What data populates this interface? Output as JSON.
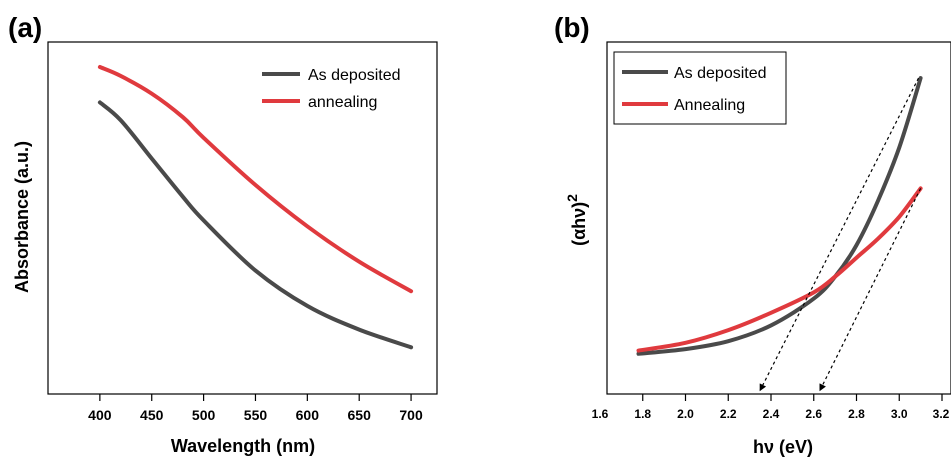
{
  "colors": {
    "as_deposited": "#4a4a4a",
    "annealing": "#e03a3e",
    "extrapolation": "#000000"
  },
  "chart_data": [
    {
      "type": "line",
      "panel_label": "(a)",
      "title": "",
      "xlabel": "Wavelength (nm)",
      "ylabel": "Absorbance (a.u.)",
      "xlim": [
        350,
        725
      ],
      "ylim": [
        0,
        1
      ],
      "x_ticks": [
        400,
        450,
        500,
        550,
        600,
        650,
        700
      ],
      "y_ticks_labeled": false,
      "legend_position": "top-right",
      "grid": false,
      "series": [
        {
          "name": "As deposited",
          "color_key": "as_deposited",
          "x": [
            400,
            420,
            450,
            480,
            500,
            550,
            600,
            650,
            700
          ],
          "y": [
            0.88,
            0.82,
            0.69,
            0.56,
            0.48,
            0.31,
            0.19,
            0.11,
            0.05
          ]
        },
        {
          "name": "annealing",
          "color_key": "annealing",
          "x": [
            400,
            420,
            450,
            480,
            500,
            550,
            600,
            650,
            700
          ],
          "y": [
            1.0,
            0.97,
            0.91,
            0.83,
            0.76,
            0.6,
            0.46,
            0.34,
            0.24
          ]
        }
      ]
    },
    {
      "type": "line",
      "panel_label": "(b)",
      "title": "",
      "xlabel": "hν (eV)",
      "ylabel_main": "(αhν)",
      "ylabel_sup": "2",
      "xlim": [
        1.6,
        3.2
      ],
      "ylim": [
        0,
        1
      ],
      "x_ticks": [
        "1.6",
        "1.8",
        "2.0",
        "2.2",
        "2.4",
        "2.6",
        "2.8",
        "3.0",
        "3.2"
      ],
      "y_ticks_labeled": false,
      "legend_position": "top-left",
      "grid": false,
      "series": [
        {
          "name": "As deposited",
          "color_key": "as_deposited",
          "x": [
            1.78,
            2.0,
            2.2,
            2.4,
            2.6,
            2.7,
            2.8,
            2.9,
            3.0,
            3.1
          ],
          "y": [
            0.115,
            0.13,
            0.155,
            0.205,
            0.29,
            0.36,
            0.46,
            0.6,
            0.77,
            0.99
          ]
        },
        {
          "name": "Annealing",
          "color_key": "annealing",
          "x": [
            1.78,
            2.0,
            2.2,
            2.4,
            2.6,
            2.7,
            2.8,
            2.9,
            3.0,
            3.1
          ],
          "y": [
            0.125,
            0.15,
            0.19,
            0.245,
            0.31,
            0.36,
            0.42,
            0.48,
            0.55,
            0.64
          ]
        }
      ],
      "extrapolations": [
        {
          "name": "tangent-as-deposited",
          "x": [
            3.09,
            2.35
          ],
          "y": [
            0.99,
            0.0
          ]
        },
        {
          "name": "tangent-annealing",
          "x": [
            3.1,
            2.63
          ],
          "y": [
            0.64,
            0.0
          ]
        }
      ]
    }
  ]
}
